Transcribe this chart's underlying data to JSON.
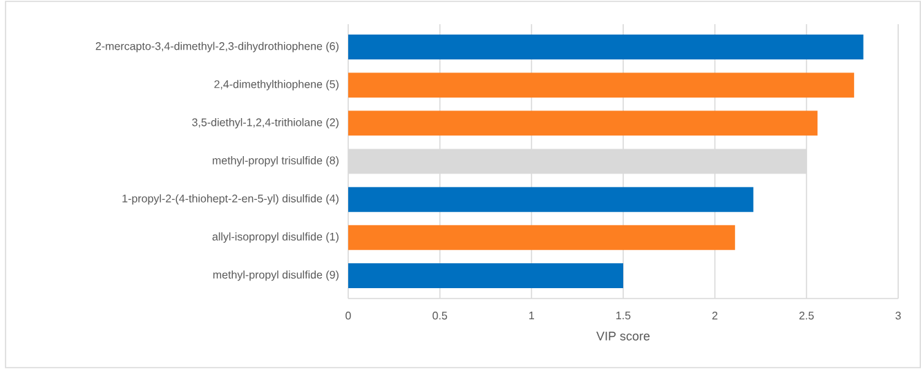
{
  "chart_data": {
    "type": "bar",
    "orientation": "horizontal",
    "categories": [
      "2-mercapto-3,4-dimethyl-2,3-dihydrothiophene (6)",
      "2,4-dimethylthiophene (5)",
      "3,5-diethyl-1,2,4-trithiolane (2)",
      "methyl-propyl trisulfide (8)",
      "1-propyl-2-(4-thiohept-2-en-5-yl) disulfide (4)",
      "allyl-isopropyl disulfide (1)",
      "methyl-propyl disulfide (9)"
    ],
    "values": [
      2.81,
      2.76,
      2.56,
      2.5,
      2.21,
      2.11,
      1.5
    ],
    "colors": [
      "#0070c0",
      "#fd7f21",
      "#fd7f21",
      "#d9d9d9",
      "#0070c0",
      "#fd7f21",
      "#0070c0"
    ],
    "xlabel": "VIP score",
    "xlim": [
      0,
      3
    ],
    "xticks": [
      0,
      0.5,
      1,
      1.5,
      2,
      2.5,
      3
    ],
    "grid": "x"
  }
}
